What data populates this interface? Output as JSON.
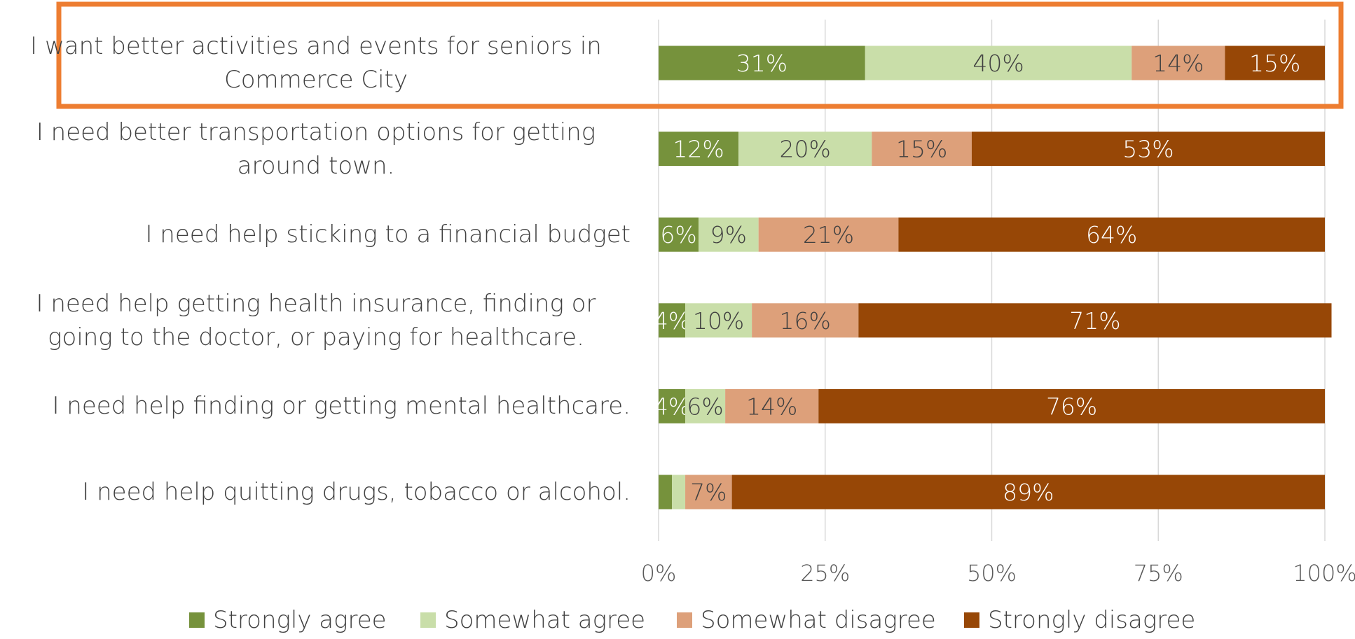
{
  "chart_data": {
    "type": "bar",
    "orientation": "horizontal",
    "stacked": "percent",
    "categories": [
      "I want better activities and events for seniors in Commerce City",
      "I need better transportation options for getting around town.",
      "I need help sticking to a financial budget",
      "I need help getting health insurance, finding or going to the doctor, or paying for healthcare.",
      "I need help finding or getting mental healthcare.",
      "I need help quitting drugs, tobacco or alcohol."
    ],
    "series": [
      {
        "name": "Strongly agree",
        "color": "#76923C",
        "values": [
          31,
          12,
          6,
          4,
          4,
          2
        ],
        "labels": [
          "31%",
          "12%",
          "6%",
          "4%",
          "4%",
          ""
        ]
      },
      {
        "name": "Somewhat agree",
        "color": "#C9DEA9",
        "values": [
          40,
          20,
          9,
          10,
          6,
          2
        ],
        "labels": [
          "40%",
          "20%",
          "9%",
          "10%",
          "6%",
          ""
        ]
      },
      {
        "name": "Somewhat disagree",
        "color": "#DDA07A",
        "values": [
          14,
          15,
          21,
          16,
          14,
          7
        ],
        "labels": [
          "14%",
          "15%",
          "21%",
          "16%",
          "14%",
          "7%"
        ]
      },
      {
        "name": "Strongly disagree",
        "color": "#974706",
        "values": [
          15,
          53,
          64,
          71,
          76,
          89
        ],
        "labels": [
          "15%",
          "53%",
          "64%",
          "71%",
          "76%",
          "89%"
        ]
      }
    ],
    "x_ticks": [
      "0%",
      "25%",
      "50%",
      "75%",
      "100%"
    ],
    "xlim": [
      0,
      100
    ],
    "grid": true,
    "legend": "bottom",
    "highlighted_category": "I want better activities and events for seniors in Commerce City",
    "highlight_color": "#ED7D31",
    "label_colors": {
      "on_dark": "#ffffff",
      "on_light": "#404040"
    },
    "title": "",
    "xlabel": "",
    "ylabel": ""
  }
}
